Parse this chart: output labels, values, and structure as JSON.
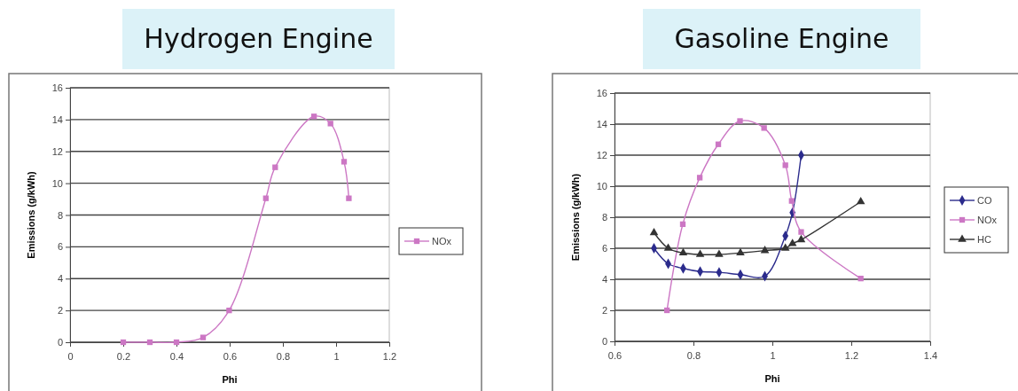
{
  "chart_data": [
    {
      "type": "line",
      "title": "Hydrogen Engine",
      "xlabel": "Phi",
      "ylabel": "Emissions (g/kWh)",
      "xlim": [
        0,
        1.2
      ],
      "xticks": [
        0,
        0.2,
        0.4,
        0.6,
        0.8,
        1,
        1.2
      ],
      "ylim": [
        0,
        16
      ],
      "yticks": [
        0,
        2,
        4,
        6,
        8,
        10,
        12,
        14,
        16
      ],
      "grid": "y",
      "legend": "right",
      "series": [
        {
          "name": "NOx",
          "color": "#cc77c4",
          "marker": "square",
          "x": [
            0.2,
            0.3,
            0.4,
            0.5,
            0.598,
            0.736,
            0.771,
            0.917,
            0.979,
            1.03,
            1.048
          ],
          "values": [
            0,
            0,
            0,
            0.3,
            2,
            9.05,
            11,
            14.2,
            13.75,
            11.35,
            9.05
          ]
        }
      ]
    },
    {
      "type": "line",
      "title": "Gasoline Engine",
      "xlabel": "Phi",
      "ylabel": "Emissions (g/kWh)",
      "xlim": [
        0.6,
        1.4
      ],
      "xticks": [
        0.6,
        0.8,
        1,
        1.2,
        1.4
      ],
      "ylim": [
        0,
        16
      ],
      "yticks": [
        0,
        2,
        4,
        6,
        8,
        10,
        12,
        14,
        16
      ],
      "grid": "y",
      "legend": "right",
      "series": [
        {
          "name": "CO",
          "color": "#2b2b8c",
          "marker": "diamond",
          "x": [
            0.7,
            0.736,
            0.774,
            0.817,
            0.865,
            0.919,
            0.981,
            1.033,
            1.051,
            1.073
          ],
          "values": [
            6,
            5,
            4.7,
            4.5,
            4.45,
            4.3,
            4.2,
            6.8,
            8.3,
            12
          ]
        },
        {
          "name": "NOx",
          "color": "#cc77c4",
          "marker": "square",
          "x": [
            0.733,
            0.773,
            0.816,
            0.863,
            0.918,
            0.979,
            1.033,
            1.049,
            1.073,
            1.224
          ],
          "values": [
            2,
            7.55,
            10.55,
            12.7,
            14.2,
            13.75,
            11.35,
            9.05,
            7.05,
            4.05
          ]
        },
        {
          "name": "HC",
          "color": "#333333",
          "marker": "triangle",
          "x": [
            0.7,
            0.736,
            0.774,
            0.817,
            0.865,
            0.919,
            0.981,
            1.033,
            1.051,
            1.073,
            1.224
          ],
          "values": [
            7,
            6,
            5.7,
            5.6,
            5.6,
            5.7,
            5.85,
            6,
            6.3,
            6.55,
            9
          ]
        }
      ]
    }
  ]
}
